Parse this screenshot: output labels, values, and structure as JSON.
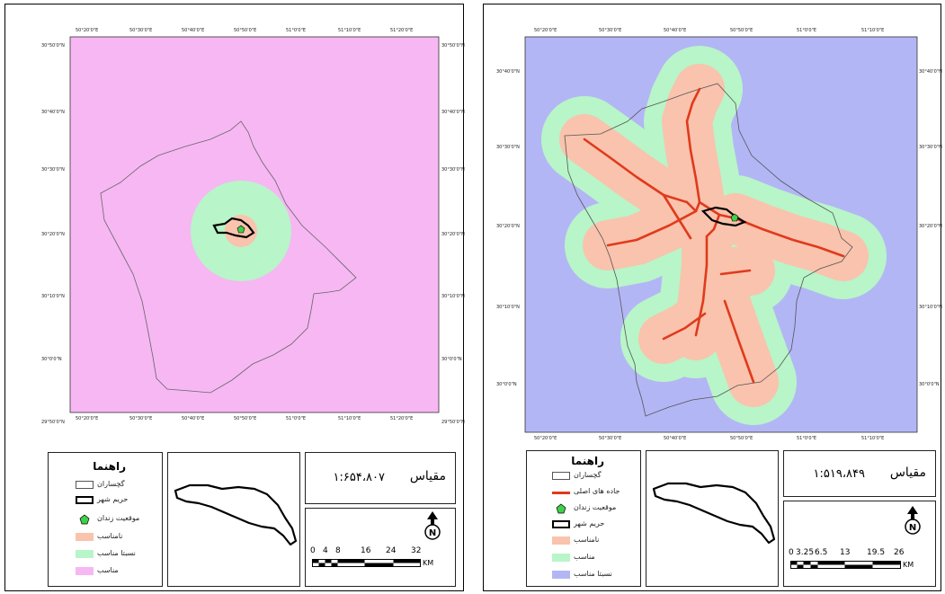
{
  "left_map": {
    "lon_ticks": [
      "50°20'0\"E",
      "50°30'0\"E",
      "50°40'0\"E",
      "50°50'0\"E",
      "51°0'0\"E",
      "51°10'0\"E",
      "51°20'0\"E"
    ],
    "lat_ticks": [
      "30°50'0\"N",
      "30°40'0\"N",
      "30°30'0\"N",
      "30°20'0\"N",
      "30°10'0\"N",
      "30°0'0\"N",
      "29°50'0\"N"
    ],
    "legend": {
      "title": "راهنما",
      "items": [
        {
          "label": "گچساران",
          "symbol": "polygon-outline",
          "color": "#ffffff"
        },
        {
          "label": "حریم شهر",
          "symbol": "thick-outline",
          "color": "#ffffff"
        },
        {
          "label": "موقعیت زندان",
          "symbol": "point",
          "color": "#3fd04a"
        },
        {
          "label": "نامناسب",
          "symbol": "fill",
          "color": "#f9c3ad"
        },
        {
          "label": "نسبتا مناسب",
          "symbol": "fill",
          "color": "#b8f5c8"
        },
        {
          "label": "مناسب",
          "symbol": "fill",
          "color": "#f6b7f3"
        }
      ]
    },
    "scale": {
      "title": "مقیاس",
      "value": "۱:۶۵۴،۸۰۷",
      "bar_labels": [
        "0",
        "4",
        "8",
        "16",
        "24",
        "32"
      ],
      "unit": "KM"
    },
    "north": "N",
    "colors": {
      "background": "#f6b7f3",
      "buffer_outer": "#b8f5c8",
      "buffer_inner": "#f9c3ad"
    }
  },
  "right_map": {
    "lon_ticks": [
      "50°20'0\"E",
      "50°30'0\"E",
      "50°40'0\"E",
      "50°50'0\"E",
      "51°0'0\"E",
      "51°10'0\"E"
    ],
    "lat_ticks": [
      "30°40'0\"N",
      "30°30'0\"N",
      "30°20'0\"N",
      "30°10'0\"N",
      "30°0'0\"N"
    ],
    "legend": {
      "title": "راهنما",
      "items": [
        {
          "label": "گچساران",
          "symbol": "polygon-outline",
          "color": "#ffffff"
        },
        {
          "label": "جاده های اصلی",
          "symbol": "line",
          "color": "#e03a1c"
        },
        {
          "label": "موقعیت زندان",
          "symbol": "point",
          "color": "#3fd04a"
        },
        {
          "label": "حریم شهر",
          "symbol": "thick-outline",
          "color": "#ffffff"
        },
        {
          "label": "نامناسب",
          "symbol": "fill",
          "color": "#f9c3ad"
        },
        {
          "label": "مناسب",
          "symbol": "fill",
          "color": "#b8f5c8"
        },
        {
          "label": "نسبتا مناسب",
          "symbol": "fill",
          "color": "#b3b6f5"
        }
      ]
    },
    "scale": {
      "title": "مقیاس",
      "value": "۱:۵۱۹،۸۴۹",
      "bar_labels": [
        "0",
        "3.25",
        "6.5",
        "13",
        "19.5",
        "26"
      ],
      "unit": "KM"
    },
    "north": "N",
    "colors": {
      "background": "#b3b6f5",
      "buffer_outer": "#b8f5c8",
      "buffer_inner": "#f9c3ad",
      "road": "#e03a1c"
    }
  }
}
